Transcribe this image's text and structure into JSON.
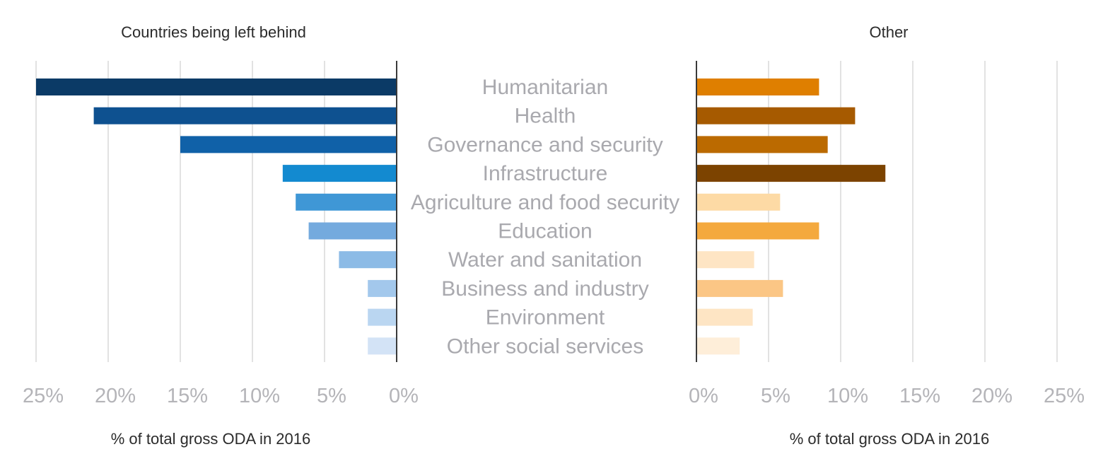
{
  "chart_data": {
    "type": "bar",
    "orientation": "horizontal",
    "layout": "butterfly",
    "categories": [
      "Humanitarian",
      "Health",
      "Governance and security",
      "Infrastructure",
      "Agriculture and food security",
      "Education",
      "Water and sanitation",
      "Business and industry",
      "Environment",
      "Other social services"
    ],
    "series": [
      {
        "name": "Countries being left behind",
        "values": [
          25,
          21,
          15,
          7.9,
          7.0,
          6.1,
          4.0,
          2.0,
          2.0,
          2.0
        ],
        "colors": [
          "#0b3a66",
          "#0e5190",
          "#1061a8",
          "#138ad0",
          "#3f97d6",
          "#74aade",
          "#8cbbe6",
          "#a3c8ec",
          "#bad6f1",
          "#d3e3f6"
        ]
      },
      {
        "name": "Other",
        "values": [
          8.5,
          11.0,
          9.1,
          13.1,
          5.8,
          8.5,
          4.0,
          6.0,
          3.9,
          3.0
        ],
        "colors": [
          "#df7f00",
          "#a65a00",
          "#bb6a00",
          "#7c4300",
          "#fddaa5",
          "#f4a93e",
          "#fee5c4",
          "#fbc685",
          "#fee5c4",
          "#feeed9"
        ]
      }
    ],
    "xlim": [
      0,
      25
    ],
    "ticks": [
      "0%",
      "5%",
      "10%",
      "15%",
      "20%",
      "25%"
    ],
    "xlabel": "% of total gross ODA in 2016",
    "grid": true
  }
}
